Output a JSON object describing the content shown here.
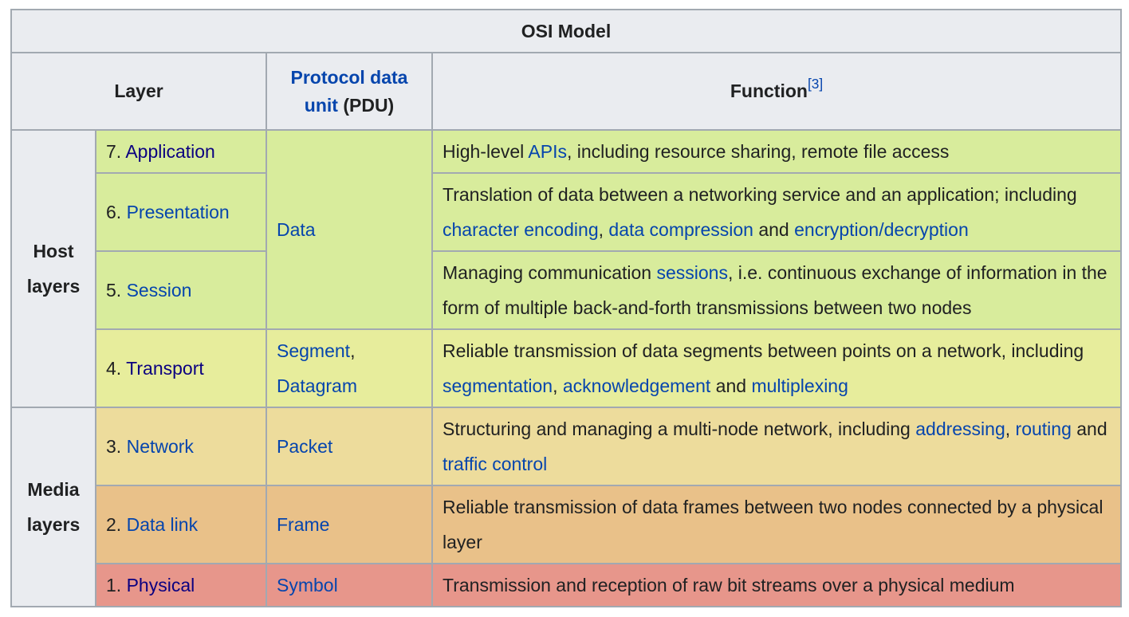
{
  "table": {
    "title": "OSI Model",
    "headers": {
      "layer": "Layer",
      "pdu_link": "Protocol data unit",
      "pdu_suffix": " (PDU)",
      "function": "Function",
      "function_ref": "[3]"
    },
    "groups": {
      "host": "Host layers",
      "media": "Media layers"
    },
    "rows": [
      {
        "num": "7.",
        "name": "Application",
        "pdu": "Data",
        "fn": {
          "t0": "High-level ",
          "l0": "APIs",
          "t1": ", including resource sharing, remote file access"
        }
      },
      {
        "num": "6.",
        "name": "Presentation",
        "fn": {
          "t0": "Translation of data between a networking service and an application; including ",
          "l0": "character encoding",
          "t1": ", ",
          "l1": "data compression",
          "t2": " and ",
          "l2": "encryption/decryption"
        }
      },
      {
        "num": "5.",
        "name": "Session",
        "fn": {
          "t0": "Managing communication ",
          "l0": "sessions",
          "t1": ", i.e. continuous exchange of information in the form of multiple back-and-forth transmissions between two nodes"
        }
      },
      {
        "num": "4.",
        "name": "Transport",
        "pdu_l0": "Segment",
        "pdu_t0": ",",
        "pdu_l1": "Datagram",
        "fn": {
          "t0": "Reliable transmission of data segments between points on a network, including ",
          "l0": "segmentation",
          "t1": ", ",
          "l1": "acknowledgement",
          "t2": " and ",
          "l2": "multiplexing"
        }
      },
      {
        "num": "3.",
        "name": "Network",
        "pdu": "Packet",
        "fn": {
          "t0": "Structuring and managing a multi-node network, including ",
          "l0": "addressing",
          "t1": ", ",
          "l1": "routing",
          "t2": " and ",
          "l2": "traffic control"
        }
      },
      {
        "num": "2.",
        "name": "Data link",
        "pdu": "Frame",
        "fn": {
          "t0": "Reliable transmission of data frames between two nodes connected by a physical layer"
        }
      },
      {
        "num": "1.",
        "name": "Physical",
        "pdu": "Symbol",
        "fn": {
          "t0": "Transmission and reception of raw bit streams over a physical medium"
        }
      }
    ],
    "colors": {
      "header_bg": "#eaecf0",
      "application": "#d8ec9c",
      "transport": "#e7ed9c",
      "network": "#eddc9c",
      "data_link": "#e9c189",
      "physical": "#e7968b",
      "link": "#0645ad",
      "visited_link": "#0b0080",
      "border": "#a2a9b1"
    }
  }
}
